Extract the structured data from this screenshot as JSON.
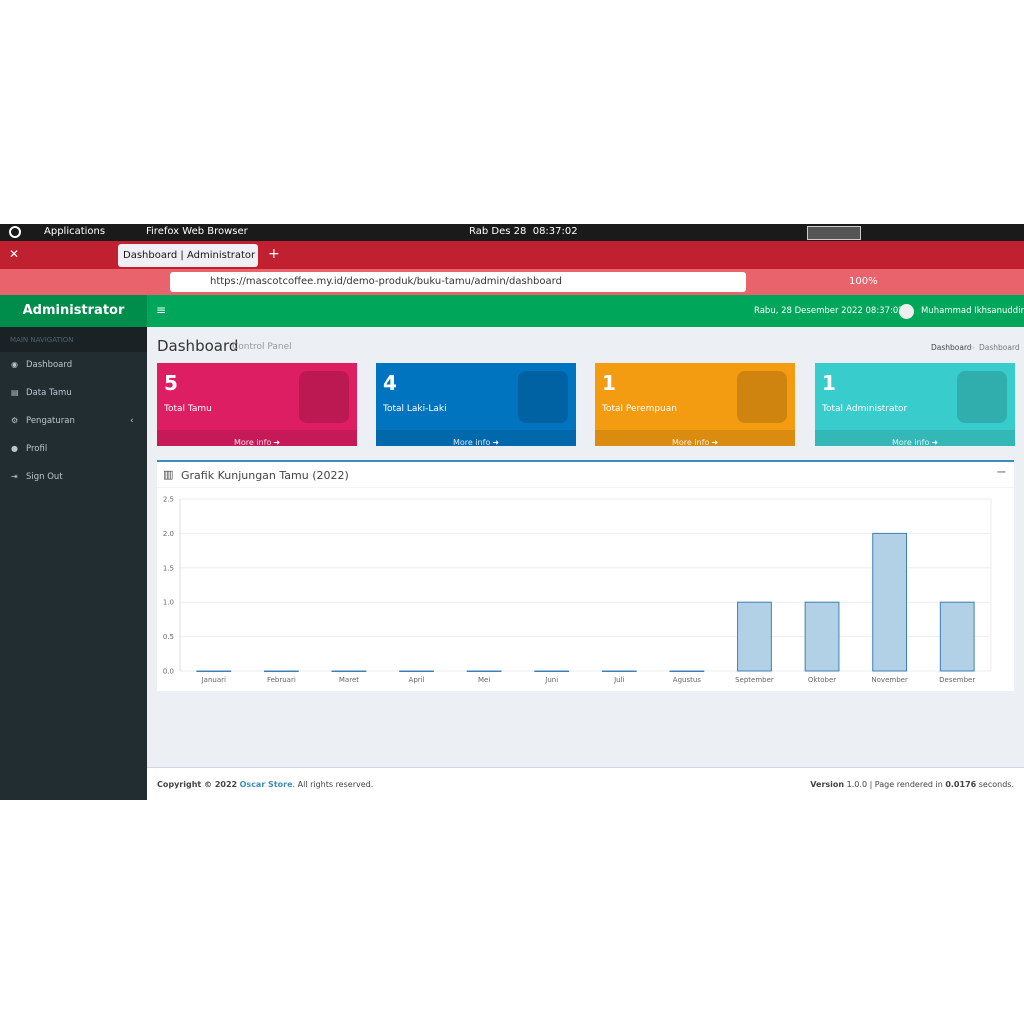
{
  "system_bar": {
    "applications": "Applications",
    "browser": "Firefox Web Browser",
    "clock": "Rab Des 28  08:37:02"
  },
  "browser": {
    "tab_title": "Dashboard | Administrator",
    "url": "https://mascotcoffee.my.id/demo-produk/buku-tamu/admin/dashboard",
    "zoom": "100%"
  },
  "app": {
    "brand": "Administrator",
    "datetime": "Rabu, 28 Desember 2022 08:37:02",
    "user": "Muhammad Ikhsanuddin"
  },
  "sidebar": {
    "header": "MAIN NAVIGATION",
    "items": [
      "Dashboard",
      "Data Tamu",
      "Pengaturan",
      "Profil",
      "Sign Out"
    ]
  },
  "page": {
    "title": "Dashboard",
    "subtitle": "Control Panel",
    "breadcrumb": [
      "Dashboard",
      "Dashboard"
    ]
  },
  "boxes": [
    {
      "value": 5,
      "label": "Total Tamu",
      "link": "More info",
      "color": "#dd1e62"
    },
    {
      "value": 4,
      "label": "Total Laki-Laki",
      "link": "More info",
      "color": "#0074bf"
    },
    {
      "value": 1,
      "label": "Total Perempuan",
      "link": "More info",
      "color": "#f39c12"
    },
    {
      "value": 1,
      "label": "Total Administrator",
      "link": "More info",
      "color": "#39cccc"
    }
  ],
  "chart_data": {
    "type": "bar",
    "title": "Grafik Kunjungan Tamu (2022)",
    "categories": [
      "Januari",
      "Februari",
      "Maret",
      "April",
      "Mei",
      "Juni",
      "Juli",
      "Agustus",
      "September",
      "Oktober",
      "November",
      "Desember"
    ],
    "values": [
      0,
      0,
      0,
      0,
      0,
      0,
      0,
      0,
      1,
      1,
      2,
      1
    ],
    "color": "#b3d1e6",
    "border_color": "#3d80b5",
    "ylim": [
      0,
      2.5
    ],
    "yticks": [
      {
        "value": 0,
        "label": "0.0"
      },
      {
        "value": 0.5,
        "label": "0.5"
      },
      {
        "value": 1,
        "label": "1.0"
      },
      {
        "value": 1.5,
        "label": "1.5"
      },
      {
        "value": 2,
        "label": "2.0"
      },
      {
        "value": 2.5,
        "label": "2.5"
      }
    ],
    "grid": true
  },
  "footer": {
    "copyright": "Copyright © 2022",
    "company": "Oscar Store",
    "rights": ". All rights reserved.",
    "version_label": "Version",
    "version": "1.0.0 | Page rendered in",
    "time": "0.0176",
    "seconds": "seconds."
  }
}
